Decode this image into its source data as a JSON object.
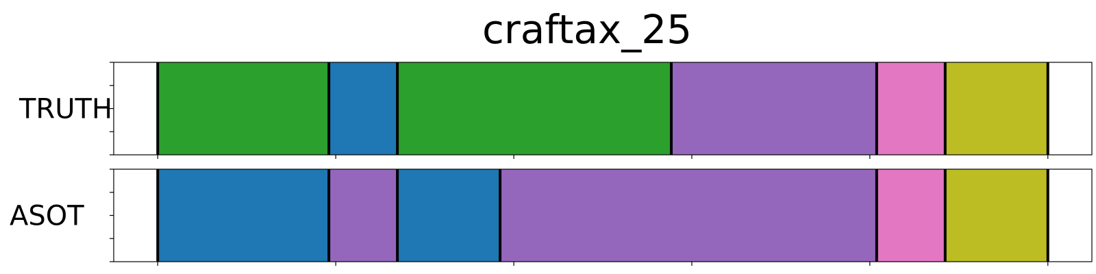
{
  "chart_data": {
    "type": "segmentation",
    "title": "craftax_25",
    "x_range": [
      0,
      100
    ],
    "colors": {
      "green": "#2ca02c",
      "blue": "#1f77b4",
      "purple": "#9467bd",
      "pink": "#e377c2",
      "olive": "#bcbd22",
      "boundary": "#000000"
    },
    "rows": [
      {
        "label": "TRUTH",
        "segments": [
          {
            "start": 0.0,
            "end": 4.5,
            "color": "#ffffff"
          },
          {
            "start": 4.5,
            "end": 22.0,
            "color": "#2ca02c"
          },
          {
            "start": 22.0,
            "end": 29.0,
            "color": "#1f77b4"
          },
          {
            "start": 29.0,
            "end": 57.0,
            "color": "#2ca02c"
          },
          {
            "start": 57.0,
            "end": 78.0,
            "color": "#9467bd"
          },
          {
            "start": 78.0,
            "end": 85.0,
            "color": "#e377c2"
          },
          {
            "start": 85.0,
            "end": 95.5,
            "color": "#bcbd22"
          },
          {
            "start": 95.5,
            "end": 100.0,
            "color": "#ffffff"
          }
        ]
      },
      {
        "label": "ASOT",
        "segments": [
          {
            "start": 0.0,
            "end": 4.5,
            "color": "#ffffff"
          },
          {
            "start": 4.5,
            "end": 22.0,
            "color": "#1f77b4"
          },
          {
            "start": 22.0,
            "end": 29.0,
            "color": "#9467bd"
          },
          {
            "start": 29.0,
            "end": 39.5,
            "color": "#1f77b4"
          },
          {
            "start": 39.5,
            "end": 78.0,
            "color": "#9467bd"
          },
          {
            "start": 78.0,
            "end": 85.0,
            "color": "#e377c2"
          },
          {
            "start": 85.0,
            "end": 95.5,
            "color": "#bcbd22"
          },
          {
            "start": 95.5,
            "end": 100.0,
            "color": "#ffffff"
          }
        ]
      }
    ],
    "x_ticks": [
      4.5,
      22.7,
      40.9,
      59.1,
      77.3,
      95.5
    ],
    "y_ticks_per_row": 4,
    "grid": false
  }
}
